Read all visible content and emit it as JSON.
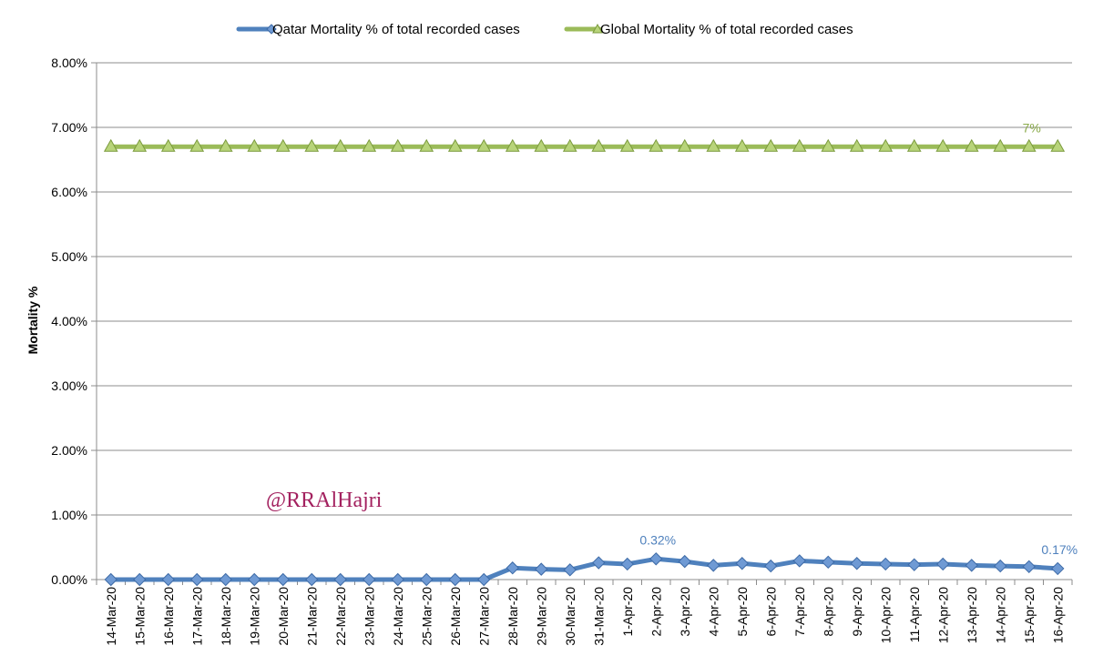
{
  "chart_data": {
    "type": "line",
    "title": "",
    "xlabel": "",
    "ylabel": "Mortality %",
    "ylim": [
      0,
      0.08
    ],
    "yticks": [
      "0.00%",
      "1.00%",
      "2.00%",
      "3.00%",
      "4.00%",
      "5.00%",
      "6.00%",
      "7.00%",
      "8.00%"
    ],
    "grid": true,
    "legend_position": "top-center",
    "categories": [
      "14-Mar-20",
      "15-Mar-20",
      "16-Mar-20",
      "17-Mar-20",
      "18-Mar-20",
      "19-Mar-20",
      "20-Mar-20",
      "21-Mar-20",
      "22-Mar-20",
      "23-Mar-20",
      "24-Mar-20",
      "25-Mar-20",
      "26-Mar-20",
      "27-Mar-20",
      "28-Mar-20",
      "29-Mar-20",
      "30-Mar-20",
      "31-Mar-20",
      "1-Apr-20",
      "2-Apr-20",
      "3-Apr-20",
      "4-Apr-20",
      "5-Apr-20",
      "6-Apr-20",
      "7-Apr-20",
      "8-Apr-20",
      "9-Apr-20",
      "10-Apr-20",
      "11-Apr-20",
      "12-Apr-20",
      "13-Apr-20",
      "14-Apr-20",
      "15-Apr-20",
      "16-Apr-20"
    ],
    "series": [
      {
        "name": "Qatar Mortality % of total recorded cases",
        "color": "#4f81bd",
        "marker": "diamond",
        "values": [
          0,
          0,
          0,
          0,
          0,
          0,
          0,
          0,
          0,
          0,
          0,
          0,
          0,
          0,
          0.0018,
          0.0016,
          0.0015,
          0.0026,
          0.0024,
          0.0032,
          0.0028,
          0.0022,
          0.0025,
          0.0021,
          0.0029,
          0.0027,
          0.0025,
          0.0024,
          0.0023,
          0.0024,
          0.0022,
          0.0021,
          0.002,
          0.0017
        ],
        "data_labels": [
          {
            "index": 19,
            "text": "0.32%"
          },
          {
            "index": 33,
            "text": "0.17%"
          }
        ]
      },
      {
        "name": "Global Mortality % of total recorded cases",
        "color": "#9bbb59",
        "marker": "triangle",
        "values": [
          0.067,
          0.067,
          0.067,
          0.067,
          0.067,
          0.067,
          0.067,
          0.067,
          0.067,
          0.067,
          0.067,
          0.067,
          0.067,
          0.067,
          0.067,
          0.067,
          0.067,
          0.067,
          0.067,
          0.067,
          0.067,
          0.067,
          0.067,
          0.067,
          0.067,
          0.067,
          0.067,
          0.067,
          0.067,
          0.067,
          0.067,
          0.067,
          0.067,
          0.067
        ],
        "data_labels": [
          {
            "index": 32,
            "text": "7%"
          }
        ]
      }
    ],
    "annotations": [
      {
        "text": "@RRAlHajri",
        "color": "#a3215f"
      }
    ]
  }
}
